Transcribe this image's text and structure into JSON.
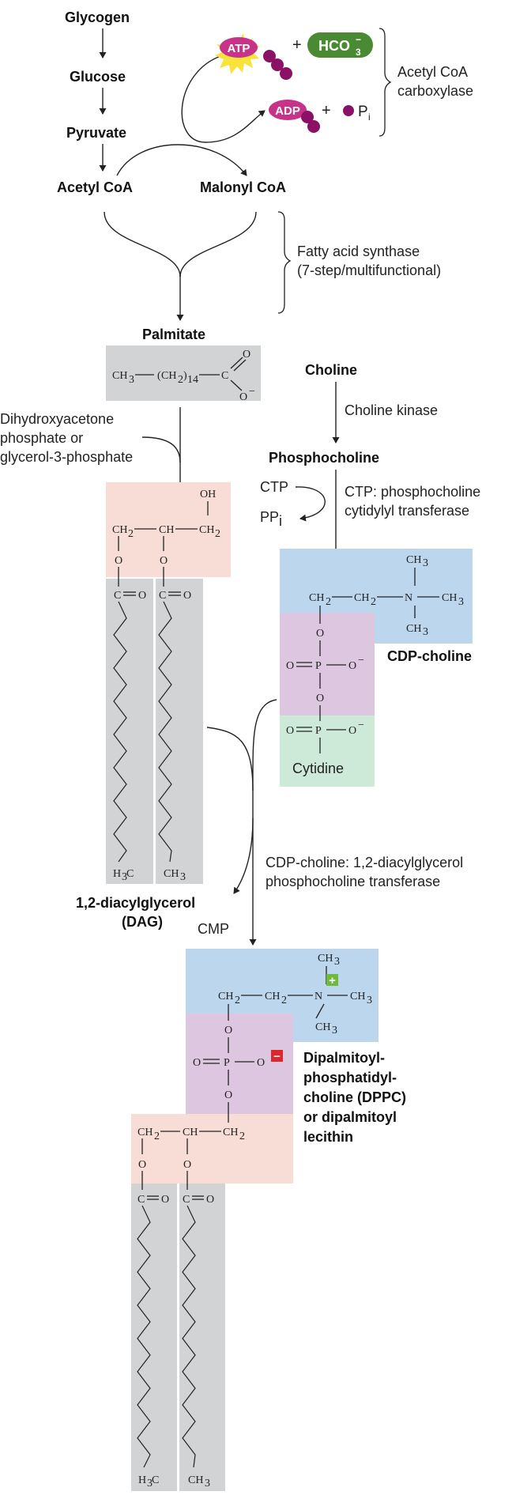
{
  "pathway": {
    "glycogen": "Glycogen",
    "glucose": "Glucose",
    "pyruvate": "Pyruvate",
    "acetyl_coa": "Acetyl CoA",
    "malonyl_coa": "Malonyl CoA",
    "palmitate": "Palmitate",
    "choline": "Choline",
    "phosphocholine": "Phosphocholine",
    "cdp_choline": "CDP-choline",
    "dag_line1": "1,2-diacylglycerol",
    "dag_line2": "(DAG)",
    "dppc_line1": "Dipalmitoyl-",
    "dppc_line2": "phosphatidyl-",
    "dppc_line3": "choline (DPPC)",
    "dppc_line4": "or dipalmitoyl",
    "dppc_line5": "lecithin",
    "cytidine": "Cytidine",
    "cmp": "CMP",
    "ctp": "CTP",
    "ppi": "PP",
    "ppi_sub": "i"
  },
  "cofactors": {
    "atp": "ATP",
    "adp": "ADP",
    "hco3": "HCO",
    "hco3_sub": "3",
    "hco3_sup": "−",
    "plus": "+",
    "pi": "P",
    "pi_sub": "i"
  },
  "enzymes": {
    "acc_line1": "Acetyl CoA",
    "acc_line2": "carboxylase",
    "fas_line1": "Fatty acid synthase",
    "fas_line2": "(7-step/multifunctional)",
    "choline_kinase": "Choline kinase",
    "ctp_transferase_line1": "CTP: phosphocholine",
    "ctp_transferase_line2": "cytidylyl transferase",
    "cdp_transferase_line1": "CDP-choline: 1,2-diacylglycerol",
    "cdp_transferase_line2": "phosphocholine transferase"
  },
  "precursor": {
    "line1": "Dihydroxyacetone",
    "line2": "phosphate or",
    "line3": "glycerol-3-phosphate"
  },
  "chemistry": {
    "ch3": "CH",
    "ch2": "CH",
    "sub3": "3",
    "sub2": "2",
    "sub14": "14",
    "ch": "CH",
    "c": "C",
    "o": "O",
    "p": "P",
    "n": "N",
    "oh": "OH",
    "o_minus": "O",
    "minus": "−",
    "h3c": "H",
    "charge_plus": "+",
    "charge_minus": "−"
  },
  "colors": {
    "gray_box": "#d2d3d5",
    "peach_box": "#f7ddd5",
    "blue_box": "#bcd6ee",
    "purple_box": "#ddc6e0",
    "green_box": "#cde9d8",
    "atp_magenta": "#c8338a",
    "atp_burst": "#f7e33a",
    "phosphate_ball": "#8a1166",
    "hco3_green": "#4a8a32",
    "plus_green": "#6dbb3b",
    "minus_red": "#e0262b"
  }
}
